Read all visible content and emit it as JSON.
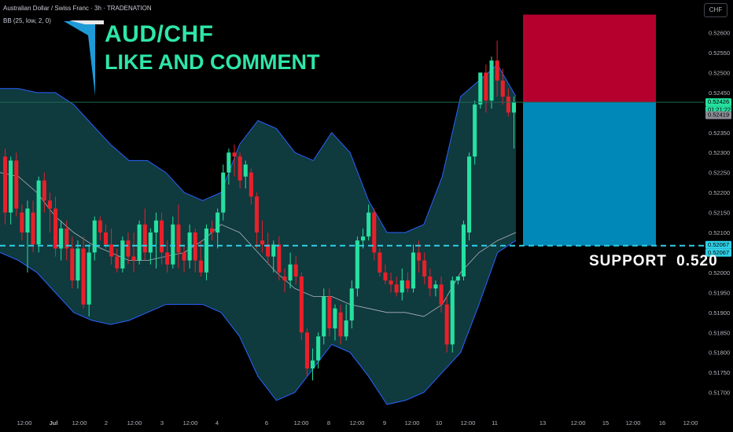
{
  "header": {
    "symbol_line": "Australian Dollar / Swiss Franc · 3h · TRADENATION",
    "indicator_line": "BB (25, low, 2, 0)"
  },
  "overlay": {
    "pair": "AUD/CHF",
    "call_to_action": "LIKE AND COMMENT",
    "support_label": "SUPPORT   0.520"
  },
  "currency_button": "CHF",
  "price_tags": {
    "last_price": "0.52426",
    "countdown": "01:21:22",
    "previous_close": "0.52419",
    "support_upper": "0.52067",
    "support_lower": "0.52067"
  },
  "colors": {
    "up": "#26e0a0",
    "down": "#e8202a",
    "band_fill": "#0f3a3e",
    "band_line": "#2962ff",
    "basis": "#b0b4bc",
    "stop_zone": "#b5002e",
    "target_zone": "#0089b8",
    "support_line": "#2fd0e6"
  },
  "chart_data": {
    "type": "candlestick",
    "timeframe": "3h",
    "ylim": [
      0.5166,
      0.5266
    ],
    "y_ticks": [
      "0.52600",
      "0.52550",
      "0.52500",
      "0.52450",
      "0.52400",
      "0.52350",
      "0.52300",
      "0.52250",
      "0.52200",
      "0.52150",
      "0.52100",
      "0.52050",
      "0.52000",
      "0.51950",
      "0.51900",
      "0.51850",
      "0.51800",
      "0.51750",
      "0.51700"
    ],
    "x_tick_labels": [
      "12:00",
      "Jul",
      "12:00",
      "2",
      "12:00",
      "3",
      "12:00",
      "4",
      "6",
      "12:00",
      "8",
      "12:00",
      "9",
      "12:00",
      "10",
      "12:00",
      "11",
      "13",
      "12:00",
      "15",
      "12:00",
      "16",
      "12:00"
    ],
    "candles": [
      {
        "o": 0.5229,
        "h": 0.5231,
        "l": 0.5212,
        "c": 0.5215
      },
      {
        "o": 0.5215,
        "h": 0.5229,
        "l": 0.5212,
        "c": 0.5228
      },
      {
        "o": 0.5228,
        "h": 0.523,
        "l": 0.5214,
        "c": 0.5216
      },
      {
        "o": 0.5215,
        "h": 0.5217,
        "l": 0.5208,
        "c": 0.521
      },
      {
        "o": 0.521,
        "h": 0.5218,
        "l": 0.52,
        "c": 0.5216
      },
      {
        "o": 0.5215,
        "h": 0.5218,
        "l": 0.5205,
        "c": 0.5207
      },
      {
        "o": 0.5207,
        "h": 0.5224,
        "l": 0.5205,
        "c": 0.5223
      },
      {
        "o": 0.5223,
        "h": 0.5225,
        "l": 0.5215,
        "c": 0.5218
      },
      {
        "o": 0.5218,
        "h": 0.522,
        "l": 0.521,
        "c": 0.5216
      },
      {
        "o": 0.5216,
        "h": 0.5219,
        "l": 0.5204,
        "c": 0.5206
      },
      {
        "o": 0.5206,
        "h": 0.5213,
        "l": 0.5203,
        "c": 0.5211
      },
      {
        "o": 0.5211,
        "h": 0.5213,
        "l": 0.5203,
        "c": 0.5206
      },
      {
        "o": 0.5206,
        "h": 0.5209,
        "l": 0.5196,
        "c": 0.5198
      },
      {
        "o": 0.5198,
        "h": 0.5208,
        "l": 0.5196,
        "c": 0.5206
      },
      {
        "o": 0.5206,
        "h": 0.5209,
        "l": 0.5191,
        "c": 0.5192
      },
      {
        "o": 0.5192,
        "h": 0.5207,
        "l": 0.5189,
        "c": 0.5205
      },
      {
        "o": 0.5205,
        "h": 0.5214,
        "l": 0.5203,
        "c": 0.5213
      },
      {
        "o": 0.5213,
        "h": 0.5214,
        "l": 0.5208,
        "c": 0.521
      },
      {
        "o": 0.521,
        "h": 0.5212,
        "l": 0.5206,
        "c": 0.5207
      },
      {
        "o": 0.5207,
        "h": 0.5211,
        "l": 0.5202,
        "c": 0.5204
      },
      {
        "o": 0.5204,
        "h": 0.5206,
        "l": 0.52,
        "c": 0.5201
      },
      {
        "o": 0.5201,
        "h": 0.5209,
        "l": 0.52,
        "c": 0.5208
      },
      {
        "o": 0.5208,
        "h": 0.521,
        "l": 0.5202,
        "c": 0.5204
      },
      {
        "o": 0.5204,
        "h": 0.521,
        "l": 0.52,
        "c": 0.5203
      },
      {
        "o": 0.5203,
        "h": 0.5213,
        "l": 0.5202,
        "c": 0.5212
      },
      {
        "o": 0.5212,
        "h": 0.5216,
        "l": 0.5203,
        "c": 0.5205
      },
      {
        "o": 0.5205,
        "h": 0.5211,
        "l": 0.5202,
        "c": 0.521
      },
      {
        "o": 0.521,
        "h": 0.5215,
        "l": 0.5201,
        "c": 0.5213
      },
      {
        "o": 0.5213,
        "h": 0.5215,
        "l": 0.5202,
        "c": 0.5205
      },
      {
        "o": 0.5205,
        "h": 0.5208,
        "l": 0.52,
        "c": 0.5202
      },
      {
        "o": 0.5202,
        "h": 0.5214,
        "l": 0.5201,
        "c": 0.5212
      },
      {
        "o": 0.5212,
        "h": 0.5217,
        "l": 0.5201,
        "c": 0.5205
      },
      {
        "o": 0.5205,
        "h": 0.5207,
        "l": 0.52,
        "c": 0.5203
      },
      {
        "o": 0.5203,
        "h": 0.5212,
        "l": 0.5201,
        "c": 0.521
      },
      {
        "o": 0.521,
        "h": 0.5211,
        "l": 0.52,
        "c": 0.5203
      },
      {
        "o": 0.5203,
        "h": 0.5208,
        "l": 0.5199,
        "c": 0.52
      },
      {
        "o": 0.52,
        "h": 0.5212,
        "l": 0.5198,
        "c": 0.5211
      },
      {
        "o": 0.5211,
        "h": 0.5213,
        "l": 0.5208,
        "c": 0.521
      },
      {
        "o": 0.521,
        "h": 0.5216,
        "l": 0.5206,
        "c": 0.5215
      },
      {
        "o": 0.5215,
        "h": 0.5227,
        "l": 0.5213,
        "c": 0.5225
      },
      {
        "o": 0.5225,
        "h": 0.5231,
        "l": 0.5222,
        "c": 0.523
      },
      {
        "o": 0.523,
        "h": 0.5232,
        "l": 0.5224,
        "c": 0.5229
      },
      {
        "o": 0.5229,
        "h": 0.523,
        "l": 0.5221,
        "c": 0.5223
      },
      {
        "o": 0.5224,
        "h": 0.5228,
        "l": 0.5221,
        "c": 0.5227
      },
      {
        "o": 0.5225,
        "h": 0.5226,
        "l": 0.5217,
        "c": 0.5219
      },
      {
        "o": 0.5219,
        "h": 0.522,
        "l": 0.5206,
        "c": 0.521
      },
      {
        "o": 0.5208,
        "h": 0.5213,
        "l": 0.5205,
        "c": 0.5207
      },
      {
        "o": 0.5207,
        "h": 0.521,
        "l": 0.5202,
        "c": 0.5204
      },
      {
        "o": 0.5204,
        "h": 0.5208,
        "l": 0.52,
        "c": 0.5207
      },
      {
        "o": 0.5207,
        "h": 0.5209,
        "l": 0.5198,
        "c": 0.52
      },
      {
        "o": 0.5199,
        "h": 0.5201,
        "l": 0.5195,
        "c": 0.5198
      },
      {
        "o": 0.5198,
        "h": 0.5205,
        "l": 0.5196,
        "c": 0.5202
      },
      {
        "o": 0.5202,
        "h": 0.5204,
        "l": 0.5197,
        "c": 0.5199
      },
      {
        "o": 0.5199,
        "h": 0.52,
        "l": 0.5183,
        "c": 0.5185
      },
      {
        "o": 0.5185,
        "h": 0.5186,
        "l": 0.5174,
        "c": 0.5176
      },
      {
        "o": 0.5176,
        "h": 0.5181,
        "l": 0.5173,
        "c": 0.5178
      },
      {
        "o": 0.5178,
        "h": 0.5185,
        "l": 0.5176,
        "c": 0.5184
      },
      {
        "o": 0.5184,
        "h": 0.5196,
        "l": 0.5182,
        "c": 0.5194
      },
      {
        "o": 0.5194,
        "h": 0.5196,
        "l": 0.5184,
        "c": 0.5186
      },
      {
        "o": 0.5186,
        "h": 0.5192,
        "l": 0.5183,
        "c": 0.5191
      },
      {
        "o": 0.519,
        "h": 0.5192,
        "l": 0.5182,
        "c": 0.5184
      },
      {
        "o": 0.5184,
        "h": 0.5192,
        "l": 0.5183,
        "c": 0.5188
      },
      {
        "o": 0.5188,
        "h": 0.5198,
        "l": 0.5186,
        "c": 0.5196
      },
      {
        "o": 0.5196,
        "h": 0.5209,
        "l": 0.5194,
        "c": 0.5208
      },
      {
        "o": 0.5208,
        "h": 0.5211,
        "l": 0.5206,
        "c": 0.5209
      },
      {
        "o": 0.5209,
        "h": 0.5217,
        "l": 0.5208,
        "c": 0.5215
      },
      {
        "o": 0.5215,
        "h": 0.5216,
        "l": 0.5203,
        "c": 0.5205
      },
      {
        "o": 0.5205,
        "h": 0.5206,
        "l": 0.5199,
        "c": 0.52
      },
      {
        "o": 0.52,
        "h": 0.5202,
        "l": 0.5197,
        "c": 0.5198
      },
      {
        "o": 0.5198,
        "h": 0.52,
        "l": 0.5195,
        "c": 0.5197
      },
      {
        "o": 0.5197,
        "h": 0.5199,
        "l": 0.5194,
        "c": 0.5195
      },
      {
        "o": 0.5195,
        "h": 0.5201,
        "l": 0.5193,
        "c": 0.5198
      },
      {
        "o": 0.5198,
        "h": 0.52,
        "l": 0.5195,
        "c": 0.5196
      },
      {
        "o": 0.5196,
        "h": 0.5207,
        "l": 0.5195,
        "c": 0.5205
      },
      {
        "o": 0.5205,
        "h": 0.5208,
        "l": 0.52,
        "c": 0.5203
      },
      {
        "o": 0.5203,
        "h": 0.5205,
        "l": 0.5197,
        "c": 0.5199
      },
      {
        "o": 0.5199,
        "h": 0.5201,
        "l": 0.5194,
        "c": 0.5196
      },
      {
        "o": 0.5196,
        "h": 0.5198,
        "l": 0.5194,
        "c": 0.5197
      },
      {
        "o": 0.5197,
        "h": 0.5199,
        "l": 0.519,
        "c": 0.5192
      },
      {
        "o": 0.5192,
        "h": 0.5194,
        "l": 0.518,
        "c": 0.5182
      },
      {
        "o": 0.5182,
        "h": 0.5199,
        "l": 0.518,
        "c": 0.5198
      },
      {
        "o": 0.5198,
        "h": 0.5199,
        "l": 0.5197,
        "c": 0.5199
      },
      {
        "o": 0.5199,
        "h": 0.5213,
        "l": 0.5198,
        "c": 0.5212
      },
      {
        "o": 0.521,
        "h": 0.523,
        "l": 0.5208,
        "c": 0.5229
      },
      {
        "o": 0.5229,
        "h": 0.5243,
        "l": 0.5227,
        "c": 0.5242
      },
      {
        "o": 0.5242,
        "h": 0.525,
        "l": 0.5241,
        "c": 0.525
      },
      {
        "o": 0.525,
        "h": 0.5252,
        "l": 0.524,
        "c": 0.5243
      },
      {
        "o": 0.5243,
        "h": 0.5254,
        "l": 0.5241,
        "c": 0.5253
      },
      {
        "o": 0.5253,
        "h": 0.5258,
        "l": 0.5244,
        "c": 0.5248
      },
      {
        "o": 0.5248,
        "h": 0.5251,
        "l": 0.5242,
        "c": 0.5244
      },
      {
        "o": 0.5244,
        "h": 0.5246,
        "l": 0.5239,
        "c": 0.524
      },
      {
        "o": 0.524,
        "h": 0.5244,
        "l": 0.5231,
        "c": 0.52426
      }
    ],
    "bollinger": {
      "period": 25,
      "source": "low",
      "stdev": 2,
      "offset": 0,
      "upper": [
        0.5246,
        0.5246,
        0.5245,
        0.5245,
        0.5242,
        0.5237,
        0.5232,
        0.5228,
        0.5228,
        0.5225,
        0.522,
        0.5218,
        0.522,
        0.5232,
        0.5238,
        0.5236,
        0.523,
        0.5228,
        0.5235,
        0.523,
        0.5218,
        0.521,
        0.521,
        0.5212,
        0.5224,
        0.5244,
        0.5248,
        0.5252,
        0.5244
      ],
      "basis": [
        0.5225,
        0.5224,
        0.522,
        0.5214,
        0.521,
        0.5207,
        0.5205,
        0.5203,
        0.5203,
        0.5204,
        0.5205,
        0.5208,
        0.5212,
        0.521,
        0.5205,
        0.52,
        0.5196,
        0.5194,
        0.5194,
        0.5192,
        0.5191,
        0.519,
        0.519,
        0.5189,
        0.5192,
        0.52,
        0.5205,
        0.5208,
        0.521
      ],
      "lower": [
        0.5205,
        0.5203,
        0.52,
        0.5195,
        0.519,
        0.5188,
        0.5187,
        0.5188,
        0.519,
        0.5192,
        0.5192,
        0.5192,
        0.519,
        0.5184,
        0.5174,
        0.5168,
        0.517,
        0.5176,
        0.5182,
        0.518,
        0.5174,
        0.5167,
        0.5168,
        0.517,
        0.5175,
        0.518,
        0.5192,
        0.5205,
        0.5208
      ]
    },
    "support_level": 0.52067,
    "position_zones": {
      "stop": {
        "from": 0.52426,
        "to": 0.52645
      },
      "target": {
        "from": 0.52067,
        "to": 0.52426
      }
    },
    "grid": false
  }
}
